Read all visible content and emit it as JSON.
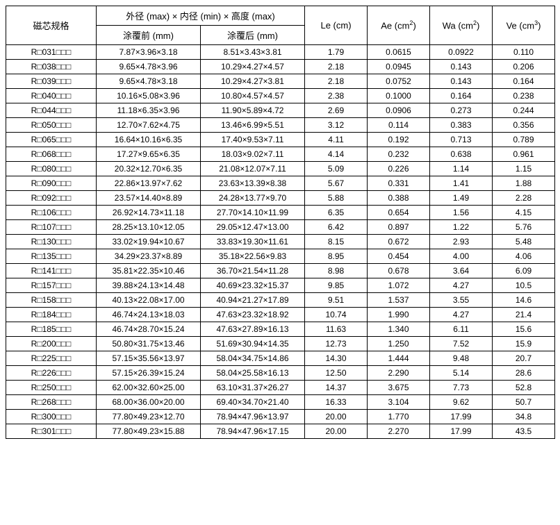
{
  "headers": {
    "core_spec": "磁芯规格",
    "dim_group": "外径 (max) × 内径 (min) × 高度 (max)",
    "before_coat": "涂覆前 (mm)",
    "after_coat": "涂覆后 (mm)",
    "le": "Le (cm)",
    "ae_pre": "Ae (cm",
    "ae_sup": "2",
    "ae_post": ")",
    "wa_pre": "Wa (cm",
    "wa_sup": "2",
    "wa_post": ")",
    "ve_pre": "Ve (cm",
    "ve_sup": "3",
    "ve_post": ")"
  },
  "rows": [
    {
      "spec": "R□031□□□",
      "before": "7.87×3.96×3.18",
      "after": "8.51×3.43×3.81",
      "le": "1.79",
      "ae": "0.0615",
      "wa": "0.0922",
      "ve": "0.110"
    },
    {
      "spec": "R□038□□□",
      "before": "9.65×4.78×3.96",
      "after": "10.29×4.27×4.57",
      "le": "2.18",
      "ae": "0.0945",
      "wa": "0.143",
      "ve": "0.206"
    },
    {
      "spec": "R□039□□□",
      "before": "9.65×4.78×3.18",
      "after": "10.29×4.27×3.81",
      "le": "2.18",
      "ae": "0.0752",
      "wa": "0.143",
      "ve": "0.164"
    },
    {
      "spec": "R□040□□□",
      "before": "10.16×5.08×3.96",
      "after": "10.80×4.57×4.57",
      "le": "2.38",
      "ae": "0.1000",
      "wa": "0.164",
      "ve": "0.238"
    },
    {
      "spec": "R□044□□□",
      "before": "11.18×6.35×3.96",
      "after": "11.90×5.89×4.72",
      "le": "2.69",
      "ae": "0.0906",
      "wa": "0.273",
      "ve": "0.244"
    },
    {
      "spec": "R□050□□□",
      "before": "12.70×7.62×4.75",
      "after": "13.46×6.99×5.51",
      "le": "3.12",
      "ae": "0.114",
      "wa": "0.383",
      "ve": "0.356"
    },
    {
      "spec": "R□065□□□",
      "before": "16.64×10.16×6.35",
      "after": "17.40×9.53×7.11",
      "le": "4.11",
      "ae": "0.192",
      "wa": "0.713",
      "ve": "0.789"
    },
    {
      "spec": "R□068□□□",
      "before": "17.27×9.65×6.35",
      "after": "18.03×9.02×7.11",
      "le": "4.14",
      "ae": "0.232",
      "wa": "0.638",
      "ve": "0.961"
    },
    {
      "spec": "R□080□□□",
      "before": "20.32×12.70×6.35",
      "after": "21.08×12.07×7.11",
      "le": "5.09",
      "ae": "0.226",
      "wa": "1.14",
      "ve": "1.15"
    },
    {
      "spec": "R□090□□□",
      "before": "22.86×13.97×7.62",
      "after": "23.63×13.39×8.38",
      "le": "5.67",
      "ae": "0.331",
      "wa": "1.41",
      "ve": "1.88"
    },
    {
      "spec": "R□092□□□",
      "before": "23.57×14.40×8.89",
      "after": "24.28×13.77×9.70",
      "le": "5.88",
      "ae": "0.388",
      "wa": "1.49",
      "ve": "2.28"
    },
    {
      "spec": "R□106□□□",
      "before": "26.92×14.73×11.18",
      "after": "27.70×14.10×11.99",
      "le": "6.35",
      "ae": "0.654",
      "wa": "1.56",
      "ve": "4.15"
    },
    {
      "spec": "R□107□□□",
      "before": "28.25×13.10×12.05",
      "after": "29.05×12.47×13.00",
      "le": "6.42",
      "ae": "0.897",
      "wa": "1.22",
      "ve": "5.76"
    },
    {
      "spec": "R□130□□□",
      "before": "33.02×19.94×10.67",
      "after": "33.83×19.30×11.61",
      "le": "8.15",
      "ae": "0.672",
      "wa": "2.93",
      "ve": "5.48"
    },
    {
      "spec": "R□135□□□",
      "before": "34.29×23.37×8.89",
      "after": "35.18×22.56×9.83",
      "le": "8.95",
      "ae": "0.454",
      "wa": "4.00",
      "ve": "4.06"
    },
    {
      "spec": "R□141□□□",
      "before": "35.81×22.35×10.46",
      "after": "36.70×21.54×11.28",
      "le": "8.98",
      "ae": "0.678",
      "wa": "3.64",
      "ve": "6.09"
    },
    {
      "spec": "R□157□□□",
      "before": "39.88×24.13×14.48",
      "after": "40.69×23.32×15.37",
      "le": "9.85",
      "ae": "1.072",
      "wa": "4.27",
      "ve": "10.5"
    },
    {
      "spec": "R□158□□□",
      "before": "40.13×22.08×17.00",
      "after": "40.94×21.27×17.89",
      "le": "9.51",
      "ae": "1.537",
      "wa": "3.55",
      "ve": "14.6"
    },
    {
      "spec": "R□184□□□",
      "before": "46.74×24.13×18.03",
      "after": "47.63×23.32×18.92",
      "le": "10.74",
      "ae": "1.990",
      "wa": "4.27",
      "ve": "21.4"
    },
    {
      "spec": "R□185□□□",
      "before": "46.74×28.70×15.24",
      "after": "47.63×27.89×16.13",
      "le": "11.63",
      "ae": "1.340",
      "wa": "6.11",
      "ve": "15.6"
    },
    {
      "spec": "R□200□□□",
      "before": "50.80×31.75×13.46",
      "after": "51.69×30.94×14.35",
      "le": "12.73",
      "ae": "1.250",
      "wa": "7.52",
      "ve": "15.9"
    },
    {
      "spec": "R□225□□□",
      "before": "57.15×35.56×13.97",
      "after": "58.04×34.75×14.86",
      "le": "14.30",
      "ae": "1.444",
      "wa": "9.48",
      "ve": "20.7"
    },
    {
      "spec": "R□226□□□",
      "before": "57.15×26.39×15.24",
      "after": "58.04×25.58×16.13",
      "le": "12.50",
      "ae": "2.290",
      "wa": "5.14",
      "ve": "28.6"
    },
    {
      "spec": "R□250□□□",
      "before": "62.00×32.60×25.00",
      "after": "63.10×31.37×26.27",
      "le": "14.37",
      "ae": "3.675",
      "wa": "7.73",
      "ve": "52.8"
    },
    {
      "spec": "R□268□□□",
      "before": "68.00×36.00×20.00",
      "after": "69.40×34.70×21.40",
      "le": "16.33",
      "ae": "3.104",
      "wa": "9.62",
      "ve": "50.7"
    },
    {
      "spec": "R□300□□□",
      "before": "77.80×49.23×12.70",
      "after": "78.94×47.96×13.97",
      "le": "20.00",
      "ae": "1.770",
      "wa": "17.99",
      "ve": "34.8"
    },
    {
      "spec": "R□301□□□",
      "before": "77.80×49.23×15.88",
      "after": "78.94×47.96×17.15",
      "le": "20.00",
      "ae": "2.270",
      "wa": "17.99",
      "ve": "43.5"
    }
  ]
}
